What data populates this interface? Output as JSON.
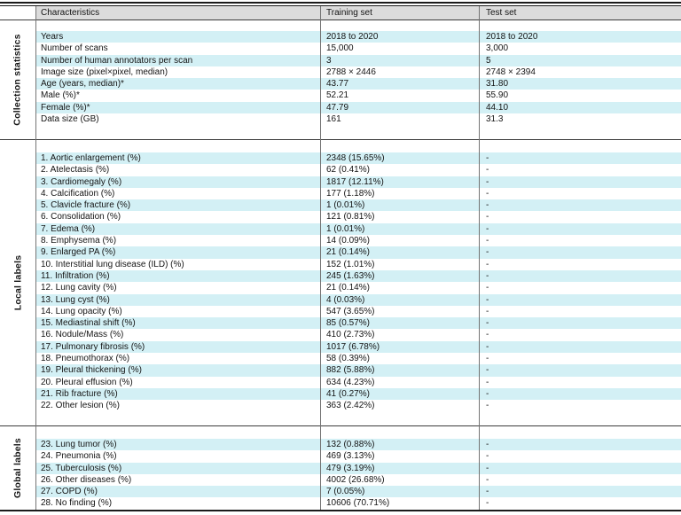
{
  "table": {
    "header": {
      "characteristics": "Characteristics",
      "training": "Training set",
      "test": "Test set"
    },
    "sections": [
      {
        "group": "Collection statistics",
        "rows": [
          [
            "Years",
            "2018 to 2020",
            "2018 to 2020"
          ],
          [
            "Number of scans",
            "15,000",
            "3,000"
          ],
          [
            "Number of human annotators per scan",
            "3",
            "5"
          ],
          [
            "Image size (pixel×pixel, median)",
            "2788 × 2446",
            "2748 × 2394"
          ],
          [
            "Age (years, median)*",
            "43.77",
            "31.80"
          ],
          [
            "Male (%)*",
            "52.21",
            "55.90"
          ],
          [
            "Female (%)*",
            "47.79",
            "44.10"
          ],
          [
            "Data size (GB)",
            "161",
            "31.3"
          ]
        ]
      },
      {
        "group": "Local labels",
        "rows": [
          [
            "1. Aortic enlargement (%)",
            "2348 (15.65%)",
            "-"
          ],
          [
            "2. Atelectasis (%)",
            "62 (0.41%)",
            "-"
          ],
          [
            "3. Cardiomegaly (%)",
            "1817 (12.11%)",
            "-"
          ],
          [
            "4. Calcification (%)",
            "177 (1.18%)",
            "-"
          ],
          [
            "5. Clavicle fracture (%)",
            "1 (0.01%)",
            "-"
          ],
          [
            "6. Consolidation (%)",
            "121 (0.81%)",
            "-"
          ],
          [
            "7. Edema (%)",
            "1 (0.01%)",
            "-"
          ],
          [
            "8. Emphysema (%)",
            "14 (0.09%)",
            "-"
          ],
          [
            "9. Enlarged PA (%)",
            "21 (0.14%)",
            "-"
          ],
          [
            "10. Interstitial lung disease (ILD) (%)",
            "152 (1.01%)",
            "-"
          ],
          [
            "11. Infiltration (%)",
            "245 (1.63%)",
            "-"
          ],
          [
            "12. Lung cavity (%)",
            "21 (0.14%)",
            "-"
          ],
          [
            "13. Lung cyst (%)",
            "4 (0.03%)",
            "-"
          ],
          [
            "14. Lung opacity (%)",
            "547 (3.65%)",
            "-"
          ],
          [
            "15. Mediastinal shift (%)",
            "85 (0.57%)",
            "-"
          ],
          [
            "16. Nodule/Mass (%)",
            "410 (2.73%)",
            "-"
          ],
          [
            "17. Pulmonary fibrosis (%)",
            "1017 (6.78%)",
            "-"
          ],
          [
            "18. Pneumothorax (%)",
            "58 (0.39%)",
            "-"
          ],
          [
            "19. Pleural thickening (%)",
            "882 (5.88%)",
            "-"
          ],
          [
            "20. Pleural effusion (%)",
            "634 (4.23%)",
            "-"
          ],
          [
            "21. Rib fracture (%)",
            "41 (0.27%)",
            "-"
          ],
          [
            "22. Other lesion (%)",
            "363 (2.42%)",
            "-"
          ]
        ]
      },
      {
        "group": "Global labels",
        "rows": [
          [
            "23. Lung tumor (%)",
            "132 (0.88%)",
            "-"
          ],
          [
            "24. Pneumonia (%)",
            "469 (3.13%)",
            "-"
          ],
          [
            "25. Tuberculosis (%)",
            "479 (3.19%)",
            "-"
          ],
          [
            "26. Other diseases (%)",
            "4002 (26.68%)",
            "-"
          ],
          [
            "27. COPD (%)",
            "7 (0.05%)",
            "-"
          ],
          [
            "28. No finding (%)",
            "10606 (70.71%)",
            "-"
          ]
        ]
      }
    ]
  },
  "colors": {
    "row_highlight": "#d3f0f5",
    "header_bg": "#dcdcdc",
    "rule": "#1b1b1b"
  }
}
